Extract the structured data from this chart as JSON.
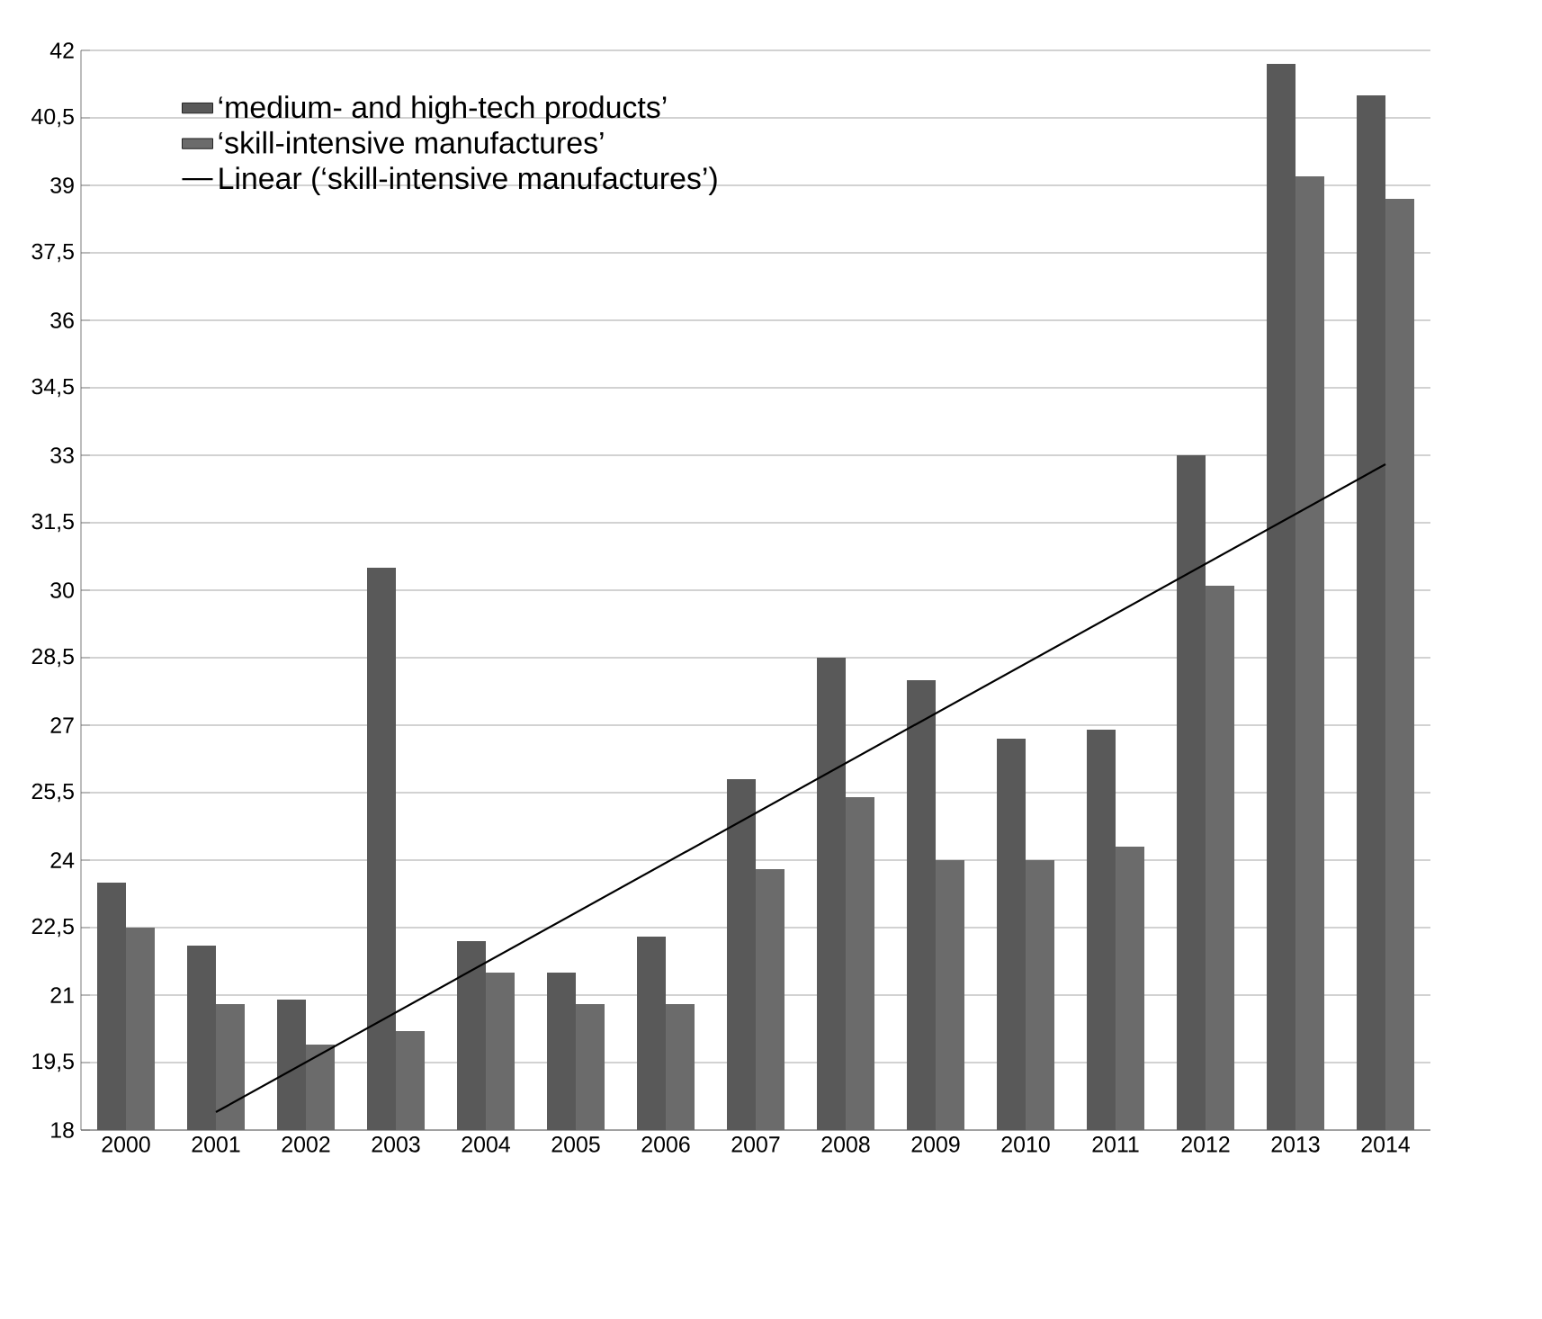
{
  "chart_data": {
    "type": "bar",
    "categories": [
      "2000",
      "2001",
      "2002",
      "2003",
      "2004",
      "2005",
      "2006",
      "2007",
      "2008",
      "2009",
      "2010",
      "2011",
      "2012",
      "2013",
      "2014"
    ],
    "series": [
      {
        "name": "‘medium- and high-tech products’",
        "color": "#595959",
        "values": [
          23.5,
          22.1,
          20.9,
          30.5,
          22.2,
          21.5,
          22.3,
          25.8,
          28.5,
          28.0,
          26.7,
          26.9,
          33.0,
          41.7,
          41.0
        ]
      },
      {
        "name": "‘skill-intensive manufactures’",
        "color": "#6b6b6b",
        "values": [
          22.5,
          20.8,
          19.9,
          20.2,
          21.5,
          20.8,
          20.8,
          23.8,
          25.4,
          24.0,
          24.0,
          24.3,
          30.1,
          39.2,
          38.7
        ]
      },
      {
        "name": "Linear (‘skill-intensive manufactures’)",
        "type": "line",
        "color": "#000000",
        "values": [
          null,
          18.4,
          null,
          null,
          null,
          null,
          null,
          null,
          null,
          null,
          null,
          null,
          null,
          null,
          32.8
        ]
      }
    ],
    "ylim": [
      18,
      42
    ],
    "yticks": [
      18,
      {
        "value": 19.5,
        "label": "19,5"
      },
      21,
      {
        "value": 22.5,
        "label": "22,5"
      },
      24,
      {
        "value": 25.5,
        "label": "25,5"
      },
      27,
      {
        "value": 28.5,
        "label": "28,5"
      },
      30,
      {
        "value": 31.5,
        "label": "31,5"
      },
      33,
      {
        "value": 34.5,
        "label": "34,5"
      },
      36,
      {
        "value": 37.5,
        "label": "37,5"
      },
      39,
      {
        "value": 40.5,
        "label": "40,5"
      },
      42
    ],
    "grid": "y",
    "legend": "top left"
  }
}
